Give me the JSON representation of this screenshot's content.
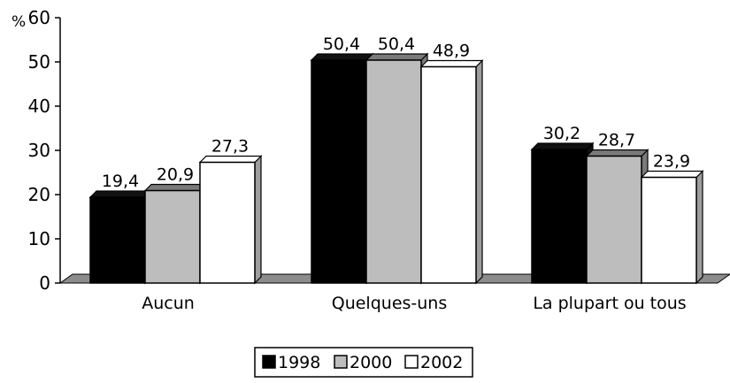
{
  "chart_data": {
    "type": "bar",
    "unit": "%",
    "categories": [
      "Aucun",
      "Quelques-uns",
      "La plupart ou tous"
    ],
    "series": [
      {
        "name": "1998",
        "values": [
          19.4,
          50.4,
          30.2
        ],
        "color": "#000000"
      },
      {
        "name": "2000",
        "values": [
          20.9,
          50.4,
          28.7
        ],
        "color": "#bdbdbd"
      },
      {
        "name": "2002",
        "values": [
          27.3,
          48.9,
          23.9
        ],
        "color": "#ffffff"
      }
    ],
    "value_labels": [
      [
        "19,4",
        "50,4",
        "30,2"
      ],
      [
        "20,9",
        "50,4",
        "28,7"
      ],
      [
        "27,3",
        "48,9",
        "23,9"
      ]
    ],
    "y_ticks": [
      "0",
      "10",
      "20",
      "30",
      "40",
      "50",
      "60"
    ],
    "ylim": [
      0,
      60
    ],
    "grid": false,
    "legend_position": "bottom-center",
    "bar_style": "3d"
  }
}
